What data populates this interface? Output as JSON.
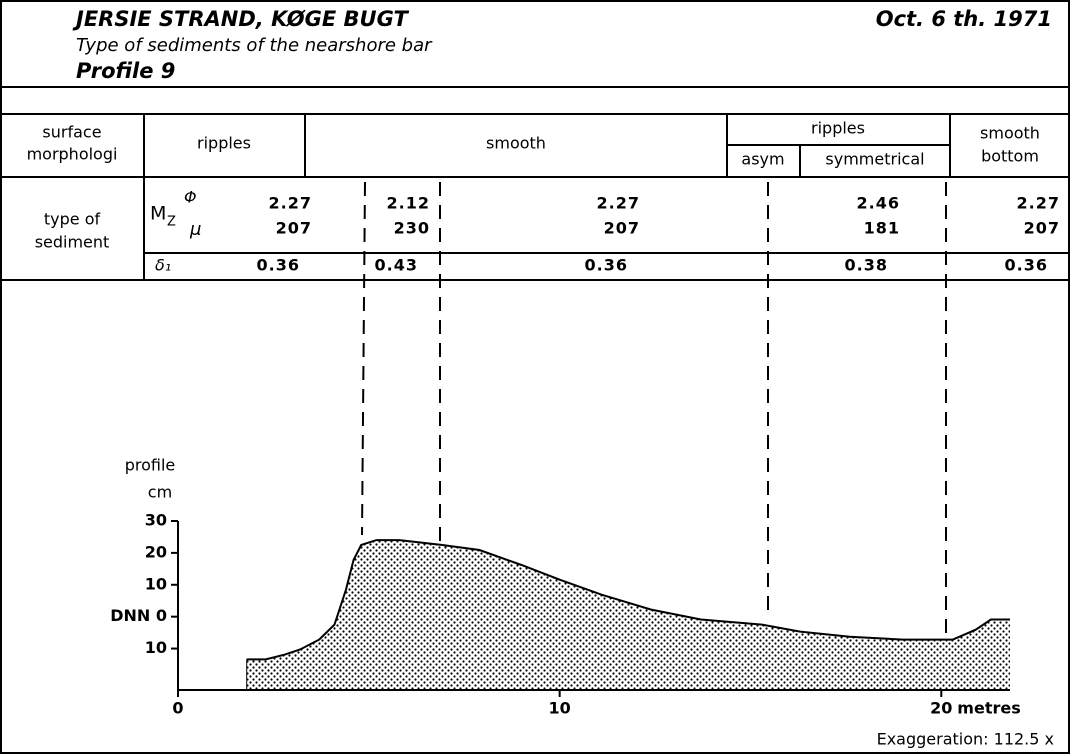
{
  "header": {
    "title": "JERSIE STRAND, KØGE BUGT",
    "date": "Oct. 6 th. 1971",
    "subtitle": "Type of sediments of the nearshore bar",
    "profile": "Profile 9"
  },
  "table": {
    "morph_label": [
      "surface",
      "morphologi"
    ],
    "morph": [
      "ripples",
      "smooth",
      "ripples",
      "asym",
      "symmetrical"
    ],
    "morph_last": [
      "smooth",
      "bottom"
    ],
    "sed_label": [
      "type of",
      "sediment"
    ],
    "mz": "M",
    "mz_sub": "Z",
    "phi_sym": "Φ",
    "mu_sym": "μ",
    "delta_sym": "δ₁",
    "phi": [
      "2.27",
      "2.12",
      "2.27",
      "2.46",
      "2.27"
    ],
    "mu": [
      "207",
      "230",
      "207",
      "181",
      "207"
    ],
    "delta": [
      "0.36",
      "0.43",
      "0.36",
      "0.38",
      "0.36"
    ]
  },
  "chart_data": {
    "type": "area",
    "ylabel": "profile",
    "yunit": "cm",
    "xlabel": "metres",
    "annotation": "Exaggeration: 112.5 x",
    "color": "#000000",
    "x": [
      1.8,
      2.3,
      2.8,
      3.2,
      3.7,
      4.1,
      4.4,
      4.6,
      4.8,
      5.2,
      5.8,
      6.9,
      7.9,
      9.0,
      10.0,
      11.1,
      12.4,
      13.7,
      15.3,
      16.3,
      17.6,
      19.0,
      20.3,
      20.9,
      21.3,
      21.8
    ],
    "values": [
      -13.4,
      -13.4,
      -11.9,
      -10.3,
      -7.2,
      -2.5,
      8.4,
      17.8,
      22.5,
      24,
      24,
      22.5,
      20.9,
      16.2,
      11.6,
      6.9,
      2.2,
      -0.9,
      -2.5,
      -4.7,
      -6.3,
      -7.2,
      -7.2,
      -4.1,
      -0.9,
      -0.9
    ],
    "xlim": [
      0,
      21.8
    ],
    "ylim": [
      -23,
      30
    ],
    "xticks": [
      0,
      10,
      20
    ],
    "yticks": [
      30,
      20,
      10,
      {
        "value": 0,
        "label": "DNN 0"
      },
      {
        "value": -10,
        "label": "10"
      }
    ]
  }
}
